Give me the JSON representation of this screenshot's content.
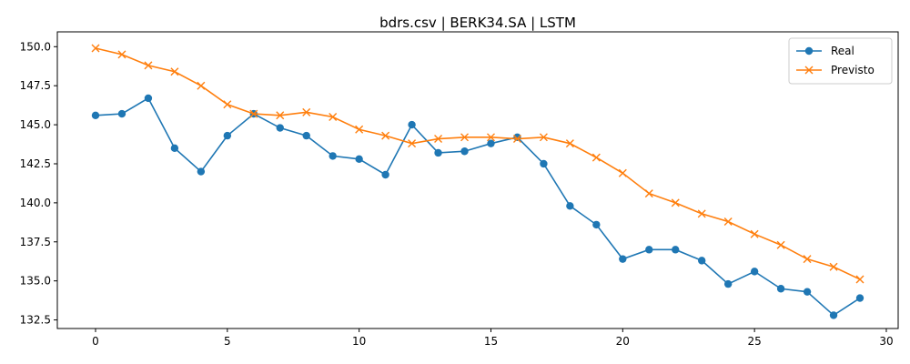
{
  "chart_data": {
    "type": "line",
    "title": "bdrs.csv | BERK34.SA | LSTM",
    "xlabel": "",
    "ylabel": "",
    "xlim": [
      -1.45,
      30.45
    ],
    "ylim": [
      131.95,
      150.95
    ],
    "x": [
      0,
      1,
      2,
      3,
      4,
      5,
      6,
      7,
      8,
      9,
      10,
      11,
      12,
      13,
      14,
      15,
      16,
      17,
      18,
      19,
      20,
      21,
      22,
      23,
      24,
      25,
      26,
      27,
      28,
      29
    ],
    "xticks": [
      0,
      5,
      10,
      15,
      20,
      25,
      30
    ],
    "yticks": [
      132.5,
      135.0,
      137.5,
      140.0,
      142.5,
      145.0,
      147.5,
      150.0
    ],
    "xtick_labels": [
      "0",
      "5",
      "10",
      "15",
      "20",
      "25",
      "30"
    ],
    "ytick_labels": [
      "132.5",
      "135.0",
      "137.5",
      "140.0",
      "142.5",
      "145.0",
      "147.5",
      "150.0"
    ],
    "grid": false,
    "legend_position": "top-right",
    "series": [
      {
        "name": "Real",
        "color": "#1f77b4",
        "marker": "circle",
        "values": [
          145.6,
          145.7,
          146.7,
          143.5,
          142.0,
          144.3,
          145.7,
          144.8,
          144.3,
          143.0,
          142.8,
          141.8,
          145.0,
          143.2,
          143.3,
          143.8,
          144.2,
          142.5,
          139.8,
          138.6,
          136.4,
          137.0,
          137.0,
          136.3,
          134.8,
          135.6,
          134.5,
          134.3,
          132.8,
          133.9
        ]
      },
      {
        "name": "Previsto",
        "color": "#ff7f0e",
        "marker": "x",
        "values": [
          149.9,
          149.5,
          148.8,
          148.4,
          147.5,
          146.3,
          145.7,
          145.6,
          145.8,
          145.5,
          144.7,
          144.3,
          143.8,
          144.1,
          144.2,
          144.2,
          144.1,
          144.2,
          143.8,
          142.9,
          141.9,
          140.6,
          140.0,
          139.3,
          138.8,
          138.0,
          137.3,
          136.4,
          135.9,
          135.1
        ]
      }
    ]
  }
}
